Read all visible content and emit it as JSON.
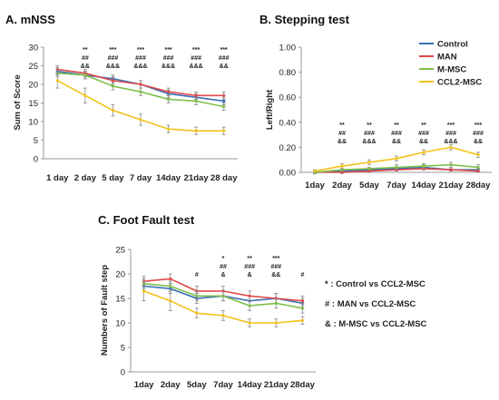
{
  "colors": {
    "Control": "#3a6fb8",
    "MAN": "#e04a4a",
    "M-MSC": "#7fbf4a",
    "CCL2-MSC": "#f2c21a"
  },
  "chart_data": [
    {
      "id": "mnss",
      "type": "line",
      "title": "A. mNSS",
      "ylabel": "Sum of Score",
      "xlabel": "",
      "ylim": [
        0,
        30
      ],
      "yticks": [
        0,
        5,
        10,
        15,
        20,
        25,
        30
      ],
      "categories": [
        "1 day",
        "2 day",
        "5 day",
        "7 day",
        "14day",
        "21day",
        "28 day"
      ],
      "series": [
        {
          "name": "Control",
          "values": [
            23.5,
            22.5,
            21.5,
            20.0,
            17.5,
            16.5,
            15.5
          ],
          "err": [
            1.0,
            1.0,
            1.0,
            1.0,
            1.0,
            1.0,
            1.0
          ]
        },
        {
          "name": "MAN",
          "values": [
            24.0,
            23.0,
            21.0,
            20.0,
            18.0,
            17.0,
            17.0
          ],
          "err": [
            1.0,
            1.0,
            1.0,
            1.0,
            1.0,
            1.0,
            1.0
          ]
        },
        {
          "name": "M-MSC",
          "values": [
            23.0,
            22.5,
            19.5,
            18.0,
            16.0,
            15.5,
            14.0
          ],
          "err": [
            1.0,
            1.0,
            1.0,
            1.0,
            1.0,
            1.0,
            1.0
          ]
        },
        {
          "name": "CCL2-MSC",
          "values": [
            21.0,
            17.0,
            13.0,
            10.5,
            8.0,
            7.5,
            7.5
          ],
          "err": [
            2.0,
            2.0,
            1.5,
            1.5,
            1.0,
            1.0,
            1.0
          ]
        }
      ],
      "annotations": [
        {
          "index": 1,
          "lines": [
            "**",
            "##",
            "&&"
          ]
        },
        {
          "index": 2,
          "lines": [
            "***",
            "###",
            "&&&"
          ]
        },
        {
          "index": 3,
          "lines": [
            "***",
            "###",
            "&&&"
          ]
        },
        {
          "index": 4,
          "lines": [
            "***",
            "###",
            "&&&"
          ]
        },
        {
          "index": 5,
          "lines": [
            "***",
            "###",
            "&&&"
          ]
        },
        {
          "index": 6,
          "lines": [
            "***",
            "###",
            "&&"
          ]
        }
      ]
    },
    {
      "id": "stepping",
      "type": "line",
      "title": "B. Stepping test",
      "ylabel": "Left/Right",
      "xlabel": "",
      "ylim": [
        0,
        1.0
      ],
      "yticks": [
        "0.00",
        "0.20",
        "0.40",
        "0.60",
        "0.80",
        "1.00"
      ],
      "categories": [
        "1day",
        "2day",
        "5day",
        "7day",
        "14day",
        "21day",
        "28day"
      ],
      "legend": [
        "Control",
        "MAN",
        "M-MSC",
        "CCL2-MSC"
      ],
      "series": [
        {
          "name": "Control",
          "values": [
            0.0,
            0.01,
            0.02,
            0.03,
            0.04,
            0.02,
            0.02
          ],
          "err": [
            0.01,
            0.01,
            0.01,
            0.01,
            0.02,
            0.01,
            0.01
          ]
        },
        {
          "name": "MAN",
          "values": [
            0.0,
            0.0,
            0.01,
            0.02,
            0.03,
            0.02,
            0.01
          ],
          "err": [
            0.01,
            0.01,
            0.01,
            0.01,
            0.01,
            0.01,
            0.01
          ]
        },
        {
          "name": "M-MSC",
          "values": [
            0.0,
            0.02,
            0.03,
            0.04,
            0.05,
            0.06,
            0.04
          ],
          "err": [
            0.01,
            0.01,
            0.01,
            0.02,
            0.02,
            0.02,
            0.02
          ]
        },
        {
          "name": "CCL2-MSC",
          "values": [
            0.01,
            0.05,
            0.08,
            0.11,
            0.16,
            0.2,
            0.14
          ],
          "err": [
            0.01,
            0.02,
            0.02,
            0.02,
            0.02,
            0.02,
            0.02
          ]
        }
      ],
      "annotations": [
        {
          "index": 1,
          "lines": [
            "**",
            "##",
            "&&"
          ]
        },
        {
          "index": 2,
          "lines": [
            "**",
            "###",
            "&&&"
          ]
        },
        {
          "index": 3,
          "lines": [
            "**",
            "###",
            "&&"
          ]
        },
        {
          "index": 4,
          "lines": [
            "**",
            "###",
            "&&"
          ]
        },
        {
          "index": 5,
          "lines": [
            "***",
            "###",
            "&&&"
          ]
        },
        {
          "index": 6,
          "lines": [
            "***",
            "###",
            "&&"
          ]
        }
      ]
    },
    {
      "id": "footfault",
      "type": "line",
      "title": "C. Foot Fault test",
      "ylabel": "Numbers of Fault step",
      "xlabel": "",
      "ylim": [
        0,
        25
      ],
      "yticks": [
        0,
        5,
        10,
        15,
        20,
        25
      ],
      "categories": [
        "1day",
        "2day",
        "5day",
        "7day",
        "14day",
        "21day",
        "28day"
      ],
      "series": [
        {
          "name": "Control",
          "values": [
            17.5,
            17.0,
            15.0,
            15.5,
            14.5,
            15.0,
            14.0
          ],
          "err": [
            1.0,
            1.0,
            1.0,
            1.0,
            1.0,
            1.0,
            1.0
          ]
        },
        {
          "name": "MAN",
          "values": [
            18.5,
            19.0,
            16.5,
            16.5,
            15.5,
            15.0,
            14.5
          ],
          "err": [
            1.0,
            1.0,
            1.0,
            1.0,
            1.0,
            1.0,
            1.0
          ]
        },
        {
          "name": "M-MSC",
          "values": [
            18.0,
            17.5,
            15.5,
            15.5,
            13.5,
            14.0,
            13.0
          ],
          "err": [
            1.0,
            1.0,
            1.0,
            1.0,
            1.0,
            1.0,
            1.0
          ]
        },
        {
          "name": "CCL2-MSC",
          "values": [
            16.5,
            14.5,
            12.0,
            11.5,
            10.0,
            10.0,
            10.5
          ],
          "err": [
            2.0,
            2.0,
            1.0,
            1.0,
            0.8,
            0.8,
            0.8
          ]
        }
      ],
      "annotations": [
        {
          "index": 2,
          "lines": [
            "#"
          ]
        },
        {
          "index": 3,
          "lines": [
            "*",
            "##",
            "&"
          ]
        },
        {
          "index": 4,
          "lines": [
            "**",
            "###",
            "&"
          ]
        },
        {
          "index": 5,
          "lines": [
            "***",
            "###",
            "&&"
          ]
        },
        {
          "index": 6,
          "lines": [
            "#"
          ]
        }
      ],
      "notes": [
        "* : Control vs CCL2-MSC",
        "# : MAN vs CCL2-MSC",
        "& : M-MSC vs CCL2-MSC"
      ]
    }
  ]
}
